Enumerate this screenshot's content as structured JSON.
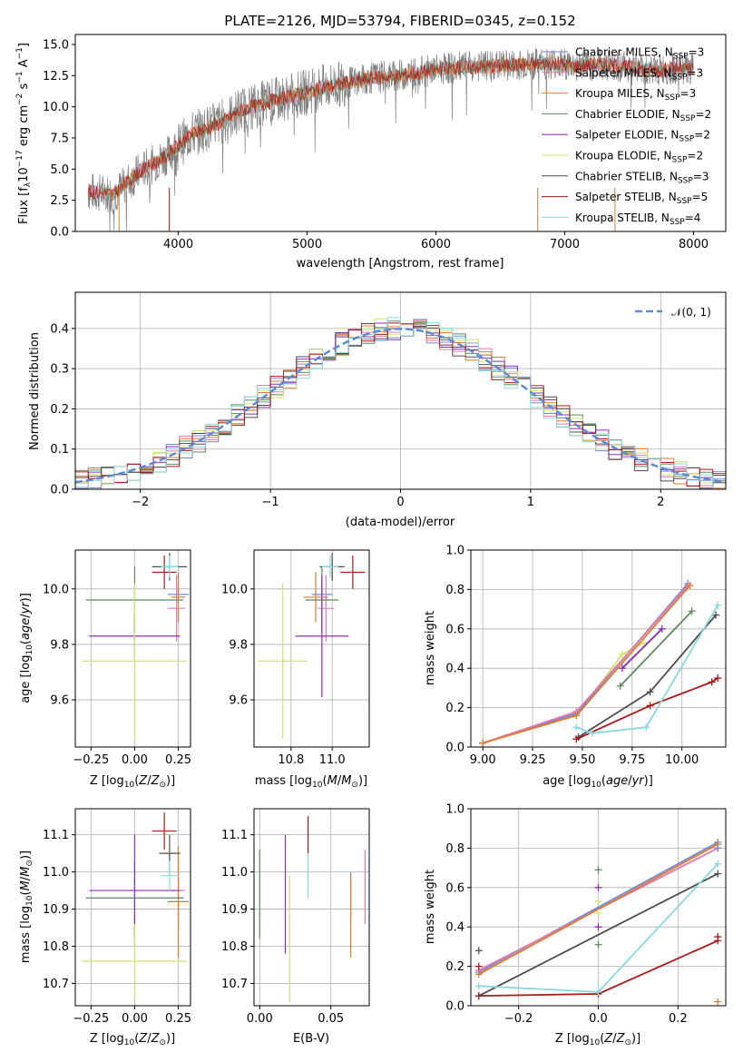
{
  "colors": {
    "chabrier_miles": "#6b8cd8",
    "salpeter_miles": "#e07bb4",
    "kroupa_miles": "#e07a2e",
    "chabrier_elodie": "#5e8a5e",
    "salpeter_elodie": "#8c2fb5",
    "kroupa_elodie": "#cfe36b",
    "chabrier_stelib": "#4d4d4d",
    "salpeter_stelib": "#aa1717",
    "kroupa_stelib": "#8ad8e0",
    "data": "#808080",
    "normal": "#5b8bd8",
    "grid": "#b0b0b0"
  },
  "chart_data": [
    {
      "type": "line",
      "title": "PLATE=2126, MJD=53794, FIBERID=0345, z=0.152",
      "xlabel": "wavelength [Angstrom, rest frame]",
      "ylabel": "Flux [f_λ 10^-17 erg cm^-2 s^-1 A^-1]",
      "xlim": [
        3200,
        8250
      ],
      "ylim": [
        0,
        15.8
      ],
      "xticks": [
        "4000",
        "5000",
        "6000",
        "7000",
        "8000"
      ],
      "yticks": [
        "0.0",
        "2.5",
        "5.0",
        "7.5",
        "10.0",
        "12.5",
        "15.0"
      ],
      "grid": false,
      "legend_position": "top-right",
      "legend": [
        {
          "label": "Chabrier MILES, N_SSP=3",
          "key": "chabrier_miles"
        },
        {
          "label": "Salpeter MILES, N_SSP=3",
          "key": "salpeter_miles"
        },
        {
          "label": "Kroupa MILES, N_SSP=3",
          "key": "kroupa_miles"
        },
        {
          "label": "Chabrier ELODIE, N_SSP=2",
          "key": "chabrier_elodie"
        },
        {
          "label": "Salpeter ELODIE, N_SSP=2",
          "key": "salpeter_elodie"
        },
        {
          "label": "Kroupa ELODIE, N_SSP=2",
          "key": "kroupa_elodie"
        },
        {
          "label": "Chabrier STELIB, N_SSP=3",
          "key": "chabrier_stelib"
        },
        {
          "label": "Salpeter STELIB, N_SSP=5",
          "key": "salpeter_stelib"
        },
        {
          "label": "Kroupa STELIB, N_SSP=4",
          "key": "kroupa_stelib"
        }
      ],
      "continuum_x": [
        3300,
        3500,
        3700,
        3900,
        4100,
        4300,
        4500,
        4700,
        4900,
        5100,
        5300,
        5500,
        5700,
        5900,
        6100,
        6300,
        6500,
        6700,
        6900,
        7100,
        7300,
        7500,
        7700,
        7900,
        8000
      ],
      "continuum_y": [
        3.2,
        3.0,
        4.8,
        6.0,
        7.8,
        8.6,
        9.8,
        10.4,
        10.9,
        11.5,
        11.9,
        12.3,
        12.5,
        12.8,
        13.1,
        13.2,
        13.3,
        13.4,
        13.5,
        13.3,
        13.4,
        13.2,
        12.9,
        13.1,
        13.0
      ]
    },
    {
      "type": "bar",
      "xlabel": "(data-model)/error",
      "ylabel": "Normed distribution",
      "xlim": [
        -2.5,
        2.5
      ],
      "ylim": [
        0,
        0.49
      ],
      "xticks": [
        "−2",
        "−1",
        "0",
        "1",
        "2"
      ],
      "yticks": [
        "0.0",
        "0.1",
        "0.2",
        "0.3",
        "0.4"
      ],
      "grid": true,
      "legend_position": "top-right",
      "normal_label": "𝒩(0, 1)",
      "bin_width": 0.1
    },
    {
      "type": "scatter",
      "xlabel": "Z [log10(Z/Z⊙)]",
      "ylabel": "age  [log10(age/yr)]",
      "xlim": [
        -0.34,
        0.32
      ],
      "ylim": [
        9.43,
        10.14
      ],
      "xticks": [
        "−0.25",
        "0.00",
        "0.25"
      ],
      "yticks": [
        "9.6",
        "9.8",
        "10.0"
      ],
      "grid": true,
      "points": [
        {
          "key": "chabrier_miles",
          "x": 0.25,
          "y": 9.98,
          "xerr": 0.06,
          "yerr": 0.03
        },
        {
          "key": "salpeter_miles",
          "x": 0.24,
          "y": 9.93,
          "xerr": 0.05,
          "yerr": 0.12
        },
        {
          "key": "kroupa_miles",
          "x": 0.25,
          "y": 9.97,
          "xerr": 0.04,
          "yerr": 0.09
        },
        {
          "key": "chabrier_elodie",
          "x": 0.0,
          "y": 9.96,
          "xerr": 0.28,
          "yerr": 0.12
        },
        {
          "key": "salpeter_elodie",
          "x": 0.0,
          "y": 9.83,
          "xerr": 0.26,
          "yerr": 0.08
        },
        {
          "key": "kroupa_elodie",
          "x": 0.0,
          "y": 9.74,
          "xerr": 0.3,
          "yerr": 0.28
        },
        {
          "key": "chabrier_stelib",
          "x": 0.2,
          "y": 10.08,
          "xerr": 0.1,
          "yerr": 0.05
        },
        {
          "key": "salpeter_stelib",
          "x": 0.17,
          "y": 10.06,
          "xerr": 0.07,
          "yerr": 0.06
        },
        {
          "key": "kroupa_stelib",
          "x": 0.2,
          "y": 10.08,
          "xerr": 0.05,
          "yerr": 0.04
        }
      ]
    },
    {
      "type": "scatter",
      "xlabel": "mass [log10(M/M⊙)]",
      "ylabel": "",
      "xlim": [
        10.62,
        11.18
      ],
      "ylim": [
        9.43,
        10.14
      ],
      "xticks": [
        "10.8",
        "11.0"
      ],
      "yticks": [
        "9.6",
        "9.8",
        "10.0"
      ],
      "grid": true,
      "points": [
        {
          "key": "chabrier_miles",
          "x": 10.95,
          "y": 9.98,
          "xerr": 0.05,
          "yerr": 0.03
        },
        {
          "key": "salpeter_miles",
          "x": 10.97,
          "y": 9.93,
          "xerr": 0.04,
          "yerr": 0.12
        },
        {
          "key": "kroupa_miles",
          "x": 10.92,
          "y": 9.97,
          "xerr": 0.06,
          "yerr": 0.09
        },
        {
          "key": "chabrier_elodie",
          "x": 10.95,
          "y": 9.96,
          "xerr": 0.08,
          "yerr": 0.12
        },
        {
          "key": "salpeter_elodie",
          "x": 10.95,
          "y": 9.83,
          "xerr": 0.13,
          "yerr": 0.22
        },
        {
          "key": "kroupa_elodie",
          "x": 10.76,
          "y": 9.74,
          "xerr": 0.12,
          "yerr": 0.28
        },
        {
          "key": "chabrier_stelib",
          "x": 11.0,
          "y": 10.08,
          "xerr": 0.06,
          "yerr": 0.05
        },
        {
          "key": "salpeter_stelib",
          "x": 11.1,
          "y": 10.06,
          "xerr": 0.06,
          "yerr": 0.06
        },
        {
          "key": "kroupa_stelib",
          "x": 10.99,
          "y": 10.08,
          "xerr": 0.04,
          "yerr": 0.04
        }
      ]
    },
    {
      "type": "line",
      "xlabel": "age  [log10(age/yr)]",
      "ylabel": "mass weight",
      "xlim": [
        8.94,
        10.22
      ],
      "ylim": [
        0,
        1.0
      ],
      "xticks": [
        "9.00",
        "9.25",
        "9.50",
        "9.75",
        "10.00"
      ],
      "yticks": [
        "0.0",
        "0.2",
        "0.4",
        "0.6",
        "0.8",
        "1.0"
      ],
      "grid": true,
      "series": [
        {
          "key": "kroupa_elodie",
          "x": [
            9.0,
            9.47,
            9.7,
            9.81
          ],
          "y": [
            0.02,
            0.16,
            0.47,
            0.53
          ]
        },
        {
          "key": "chabrier_miles",
          "x": [
            9.0,
            9.47,
            10.03
          ],
          "y": [
            0.02,
            0.17,
            0.83
          ]
        },
        {
          "key": "salpeter_miles",
          "x": [
            9.0,
            9.47,
            10.03
          ],
          "y": [
            0.02,
            0.18,
            0.82
          ]
        },
        {
          "key": "kroupa_miles",
          "x": [
            9.0,
            9.47,
            10.04
          ],
          "y": [
            0.02,
            0.16,
            0.82
          ]
        },
        {
          "key": "salpeter_elodie",
          "x": [
            9.7,
            9.9
          ],
          "y": [
            0.4,
            0.6
          ]
        },
        {
          "key": "chabrier_elodie",
          "x": [
            9.69,
            10.05
          ],
          "y": [
            0.31,
            0.69
          ]
        },
        {
          "key": "chabrier_stelib",
          "x": [
            9.48,
            9.84,
            10.17
          ],
          "y": [
            0.05,
            0.28,
            0.67
          ]
        },
        {
          "key": "salpeter_stelib",
          "x": [
            9.47,
            9.84,
            10.15,
            10.18
          ],
          "y": [
            0.04,
            0.21,
            0.33,
            0.35
          ]
        },
        {
          "key": "kroupa_stelib",
          "x": [
            9.47,
            9.55,
            9.82,
            10.18
          ],
          "y": [
            0.1,
            0.07,
            0.1,
            0.72
          ]
        }
      ]
    },
    {
      "type": "scatter",
      "xlabel": "Z [log10(Z/Z⊙)]",
      "ylabel": "mass [log10(M/M⊙)]",
      "xlim": [
        -0.34,
        0.32
      ],
      "ylim": [
        10.64,
        11.17
      ],
      "xticks": [
        "−0.25",
        "0.00",
        "0.25"
      ],
      "yticks": [
        "10.7",
        "10.8",
        "10.9",
        "11.0",
        "11.1"
      ],
      "grid": true,
      "points": [
        {
          "key": "chabrier_miles",
          "x": 0.25,
          "y": 10.92,
          "xerr": 0.05,
          "yerr": 0.06
        },
        {
          "key": "salpeter_miles",
          "x": 0.25,
          "y": 10.95,
          "xerr": 0.04,
          "yerr": 0.09
        },
        {
          "key": "kroupa_miles",
          "x": 0.25,
          "y": 10.92,
          "xerr": 0.06,
          "yerr": 0.15
        },
        {
          "key": "chabrier_elodie",
          "x": 0.0,
          "y": 10.93,
          "xerr": 0.28,
          "yerr": 0.1
        },
        {
          "key": "salpeter_elodie",
          "x": 0.0,
          "y": 10.95,
          "xerr": 0.26,
          "yerr": 0.15
        },
        {
          "key": "kroupa_elodie",
          "x": 0.0,
          "y": 10.76,
          "xerr": 0.3,
          "yerr": 0.1
        },
        {
          "key": "chabrier_stelib",
          "x": 0.2,
          "y": 11.05,
          "xerr": 0.06,
          "yerr": 0.05
        },
        {
          "key": "salpeter_stelib",
          "x": 0.17,
          "y": 11.11,
          "xerr": 0.07,
          "yerr": 0.05
        },
        {
          "key": "kroupa_stelib",
          "x": 0.2,
          "y": 10.99,
          "xerr": 0.05,
          "yerr": 0.04
        }
      ]
    },
    {
      "type": "scatter",
      "xlabel": "E(B-V)",
      "ylabel": "",
      "xlim": [
        -0.004,
        0.077
      ],
      "ylim": [
        10.64,
        11.17
      ],
      "xticks": [
        "0.00",
        "0.05"
      ],
      "yticks": [
        "10.7",
        "10.8",
        "10.9",
        "11.0",
        "11.1"
      ],
      "grid": true,
      "points": [
        {
          "key": "chabrier_elodie",
          "x": 0.0,
          "y": 10.94,
          "xerr": 0,
          "yerr": 0.12
        },
        {
          "key": "salpeter_elodie",
          "x": 0.018,
          "y": 10.94,
          "xerr": 0,
          "yerr": 0.16
        },
        {
          "key": "kroupa_elodie",
          "x": 0.021,
          "y": 10.82,
          "xerr": 0,
          "yerr": 0.17
        },
        {
          "key": "salpeter_stelib",
          "x": 0.034,
          "y": 11.1,
          "xerr": 0,
          "yerr": 0.05
        },
        {
          "key": "kroupa_stelib",
          "x": 0.034,
          "y": 10.99,
          "xerr": 0,
          "yerr": 0.06
        },
        {
          "key": "chabrier_miles",
          "x": 0.064,
          "y": 10.94,
          "xerr": 0,
          "yerr": 0.06
        },
        {
          "key": "kroupa_miles",
          "x": 0.064,
          "y": 10.88,
          "xerr": 0,
          "yerr": 0.11
        },
        {
          "key": "salpeter_miles",
          "x": 0.074,
          "y": 10.96,
          "xerr": 0,
          "yerr": 0.1
        }
      ]
    },
    {
      "type": "line",
      "xlabel": "Z [log10(Z/Z⊙)]",
      "ylabel": "mass weight",
      "xlim": [
        -0.32,
        0.32
      ],
      "ylim": [
        0,
        1.0
      ],
      "xticks": [
        "−0.2",
        "0.0",
        "0.2"
      ],
      "yticks": [
        "0.0",
        "0.2",
        "0.4",
        "0.6",
        "0.8",
        "1.0"
      ],
      "grid": true,
      "series": [
        {
          "key": "chabrier_miles",
          "x": [
            -0.3,
            0.3
          ],
          "y": [
            0.17,
            0.83
          ]
        },
        {
          "key": "salpeter_miles",
          "x": [
            -0.3,
            0.3
          ],
          "y": [
            0.18,
            0.8
          ]
        },
        {
          "key": "kroupa_miles",
          "x": [
            -0.3,
            0.3
          ],
          "y": [
            0.16,
            0.82
          ]
        },
        {
          "key": "chabrier_stelib",
          "x": [
            -0.3,
            0.3
          ],
          "y": [
            0.05,
            0.67
          ]
        },
        {
          "key": "salpeter_stelib",
          "x": [
            -0.3,
            0.0,
            0.3
          ],
          "y": [
            0.05,
            0.06,
            0.33
          ]
        },
        {
          "key": "kroupa_stelib",
          "x": [
            -0.3,
            0.0,
            0.3
          ],
          "y": [
            0.1,
            0.07,
            0.72
          ]
        }
      ],
      "markers": [
        {
          "key": "chabrier_stelib",
          "x": -0.3,
          "y": 0.28
        },
        {
          "key": "salpeter_stelib",
          "x": -0.3,
          "y": 0.2
        },
        {
          "key": "chabrier_elodie",
          "x": 0.0,
          "y": 0.69
        },
        {
          "key": "chabrier_elodie",
          "x": 0.0,
          "y": 0.31
        },
        {
          "key": "salpeter_elodie",
          "x": 0.0,
          "y": 0.6
        },
        {
          "key": "salpeter_elodie",
          "x": 0.0,
          "y": 0.4
        },
        {
          "key": "kroupa_elodie",
          "x": 0.0,
          "y": 0.53
        },
        {
          "key": "kroupa_elodie",
          "x": 0.0,
          "y": 0.47
        },
        {
          "key": "kroupa_miles",
          "x": 0.3,
          "y": 0.02
        },
        {
          "key": "salpeter_stelib",
          "x": 0.3,
          "y": 0.35
        },
        {
          "key": "chabrier_miles",
          "x": 0.3,
          "y": 0.8
        }
      ]
    }
  ]
}
